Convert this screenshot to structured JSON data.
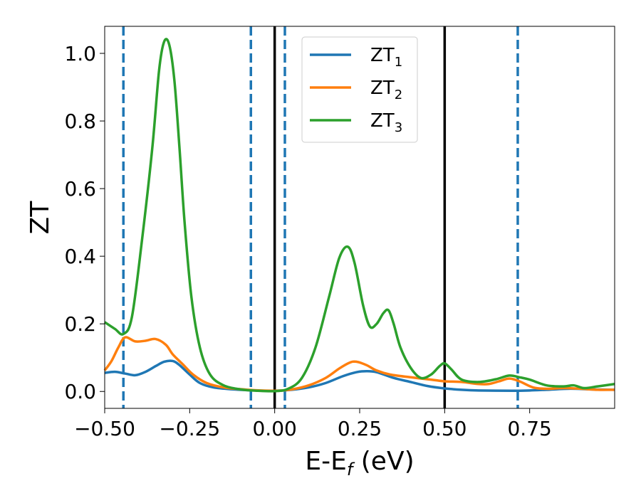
{
  "chart_data": {
    "type": "line",
    "xlabel": "E-E",
    "xlabel_sub": "f",
    "xlabel_unit": " (eV)",
    "ylabel": "ZT",
    "xlim": [
      -0.5,
      1.0
    ],
    "ylim": [
      -0.05,
      1.08
    ],
    "grid": false,
    "legend_position": "top-center",
    "xticks": [
      {
        "value": -0.5,
        "label": "−0.50"
      },
      {
        "value": -0.25,
        "label": "−0.25"
      },
      {
        "value": 0.0,
        "label": "0.00"
      },
      {
        "value": 0.25,
        "label": "0.25"
      },
      {
        "value": 0.5,
        "label": "0.50"
      },
      {
        "value": 0.75,
        "label": "0.75"
      }
    ],
    "yticks": [
      {
        "value": 0.0,
        "label": "0.0"
      },
      {
        "value": 0.2,
        "label": "0.2"
      },
      {
        "value": 0.4,
        "label": "0.4"
      },
      {
        "value": 0.6,
        "label": "0.6"
      },
      {
        "value": 0.8,
        "label": "0.8"
      },
      {
        "value": 1.0,
        "label": "1.0"
      }
    ],
    "vlines_solid": [
      0.0,
      0.5
    ],
    "vlines_dashed": [
      -0.445,
      -0.07,
      0.03,
      0.715
    ],
    "series": [
      {
        "name": "ZT",
        "subscript": "1",
        "color": "#1f77b4",
        "points": [
          [
            -0.5,
            0.055
          ],
          [
            -0.47,
            0.058
          ],
          [
            -0.44,
            0.053
          ],
          [
            -0.41,
            0.048
          ],
          [
            -0.38,
            0.058
          ],
          [
            -0.35,
            0.075
          ],
          [
            -0.325,
            0.088
          ],
          [
            -0.3,
            0.09
          ],
          [
            -0.28,
            0.078
          ],
          [
            -0.25,
            0.05
          ],
          [
            -0.22,
            0.025
          ],
          [
            -0.18,
            0.012
          ],
          [
            -0.12,
            0.006
          ],
          [
            -0.06,
            0.003
          ],
          [
            0.0,
            0.002
          ],
          [
            0.05,
            0.005
          ],
          [
            0.1,
            0.012
          ],
          [
            0.15,
            0.025
          ],
          [
            0.2,
            0.045
          ],
          [
            0.24,
            0.057
          ],
          [
            0.27,
            0.06
          ],
          [
            0.3,
            0.057
          ],
          [
            0.35,
            0.04
          ],
          [
            0.4,
            0.028
          ],
          [
            0.45,
            0.016
          ],
          [
            0.5,
            0.009
          ],
          [
            0.55,
            0.005
          ],
          [
            0.6,
            0.003
          ],
          [
            0.7,
            0.002
          ],
          [
            0.75,
            0.003
          ],
          [
            0.8,
            0.005
          ],
          [
            0.87,
            0.008
          ],
          [
            0.93,
            0.006
          ],
          [
            1.0,
            0.005
          ]
        ]
      },
      {
        "name": "ZT",
        "subscript": "2",
        "color": "#ff7f0e",
        "points": [
          [
            -0.5,
            0.062
          ],
          [
            -0.48,
            0.09
          ],
          [
            -0.46,
            0.13
          ],
          [
            -0.44,
            0.16
          ],
          [
            -0.41,
            0.148
          ],
          [
            -0.38,
            0.15
          ],
          [
            -0.35,
            0.155
          ],
          [
            -0.32,
            0.138
          ],
          [
            -0.3,
            0.11
          ],
          [
            -0.27,
            0.08
          ],
          [
            -0.24,
            0.05
          ],
          [
            -0.2,
            0.025
          ],
          [
            -0.15,
            0.012
          ],
          [
            -0.08,
            0.005
          ],
          [
            0.0,
            0.002
          ],
          [
            0.05,
            0.006
          ],
          [
            0.1,
            0.018
          ],
          [
            0.15,
            0.04
          ],
          [
            0.19,
            0.068
          ],
          [
            0.22,
            0.085
          ],
          [
            0.24,
            0.088
          ],
          [
            0.27,
            0.078
          ],
          [
            0.3,
            0.062
          ],
          [
            0.34,
            0.05
          ],
          [
            0.4,
            0.042
          ],
          [
            0.46,
            0.035
          ],
          [
            0.5,
            0.03
          ],
          [
            0.55,
            0.028
          ],
          [
            0.6,
            0.022
          ],
          [
            0.63,
            0.022
          ],
          [
            0.66,
            0.03
          ],
          [
            0.69,
            0.038
          ],
          [
            0.72,
            0.03
          ],
          [
            0.76,
            0.012
          ],
          [
            0.8,
            0.008
          ],
          [
            0.85,
            0.01
          ],
          [
            0.9,
            0.008
          ],
          [
            0.95,
            0.005
          ],
          [
            1.0,
            0.005
          ]
        ]
      },
      {
        "name": "ZT",
        "subscript": "3",
        "color": "#2ca02c",
        "points": [
          [
            -0.5,
            0.205
          ],
          [
            -0.47,
            0.185
          ],
          [
            -0.445,
            0.17
          ],
          [
            -0.42,
            0.22
          ],
          [
            -0.39,
            0.45
          ],
          [
            -0.36,
            0.72
          ],
          [
            -0.34,
            0.95
          ],
          [
            -0.325,
            1.035
          ],
          [
            -0.31,
            1.025
          ],
          [
            -0.295,
            0.92
          ],
          [
            -0.28,
            0.72
          ],
          [
            -0.265,
            0.5
          ],
          [
            -0.245,
            0.28
          ],
          [
            -0.22,
            0.13
          ],
          [
            -0.19,
            0.05
          ],
          [
            -0.15,
            0.018
          ],
          [
            -0.1,
            0.006
          ],
          [
            -0.05,
            0.002
          ],
          [
            0.0,
            0.001
          ],
          [
            0.04,
            0.008
          ],
          [
            0.08,
            0.04
          ],
          [
            0.12,
            0.13
          ],
          [
            0.16,
            0.28
          ],
          [
            0.19,
            0.395
          ],
          [
            0.215,
            0.428
          ],
          [
            0.235,
            0.38
          ],
          [
            0.26,
            0.255
          ],
          [
            0.28,
            0.192
          ],
          [
            0.3,
            0.2
          ],
          [
            0.32,
            0.232
          ],
          [
            0.335,
            0.24
          ],
          [
            0.35,
            0.2
          ],
          [
            0.37,
            0.13
          ],
          [
            0.4,
            0.07
          ],
          [
            0.43,
            0.04
          ],
          [
            0.46,
            0.05
          ],
          [
            0.485,
            0.075
          ],
          [
            0.5,
            0.083
          ],
          [
            0.52,
            0.065
          ],
          [
            0.55,
            0.035
          ],
          [
            0.6,
            0.028
          ],
          [
            0.65,
            0.036
          ],
          [
            0.69,
            0.047
          ],
          [
            0.72,
            0.042
          ],
          [
            0.75,
            0.035
          ],
          [
            0.8,
            0.018
          ],
          [
            0.85,
            0.015
          ],
          [
            0.88,
            0.018
          ],
          [
            0.91,
            0.01
          ],
          [
            0.95,
            0.015
          ],
          [
            1.0,
            0.022
          ]
        ]
      }
    ]
  }
}
